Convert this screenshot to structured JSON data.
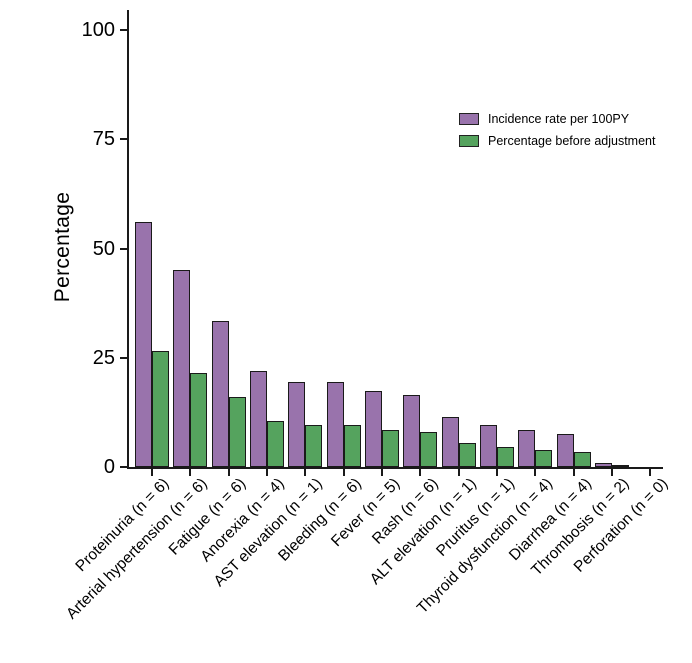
{
  "chart_data": {
    "type": "bar",
    "title": "",
    "xlabel": "",
    "ylabel": "Percentage",
    "ylim": [
      0,
      100
    ],
    "yticks": [
      0,
      25,
      50,
      75,
      100
    ],
    "grid": false,
    "legend_position": "upper-right",
    "categories": [
      "Proteinuria (n = 6)",
      "Arterial hypertension (n = 6)",
      "Fatigue (n = 6)",
      "Anorexia (n = 4)",
      "AST elevation (n = 1)",
      "Bleeding (n = 6)",
      "Fever (n = 5)",
      "Rash (n = 6)",
      "ALT elevation (n = 1)",
      "Pruritus (n = 1)",
      "Thyroid dysfunction (n = 4)",
      "Diarrhea (n = 4)",
      "Thrombosis (n = 2)",
      "Perforation (n = 0)"
    ],
    "series": [
      {
        "name": "Incidence rate per 100PY",
        "color": "#9973AC",
        "values": [
          56,
          45,
          33.5,
          22,
          19.5,
          19.5,
          17.5,
          16.5,
          11.5,
          9.5,
          8.5,
          7.5,
          1,
          0
        ]
      },
      {
        "name": "Percentage before adjustment",
        "color": "#55A35E",
        "values": [
          26.5,
          21.5,
          16,
          10.5,
          9.5,
          9.5,
          8.5,
          8,
          5.5,
          4.5,
          4,
          3.5,
          0.5,
          0
        ]
      }
    ]
  },
  "colors": {
    "axis": "#1a1a1a",
    "bar_border": "#1a1a1a",
    "background": "#ffffff"
  }
}
